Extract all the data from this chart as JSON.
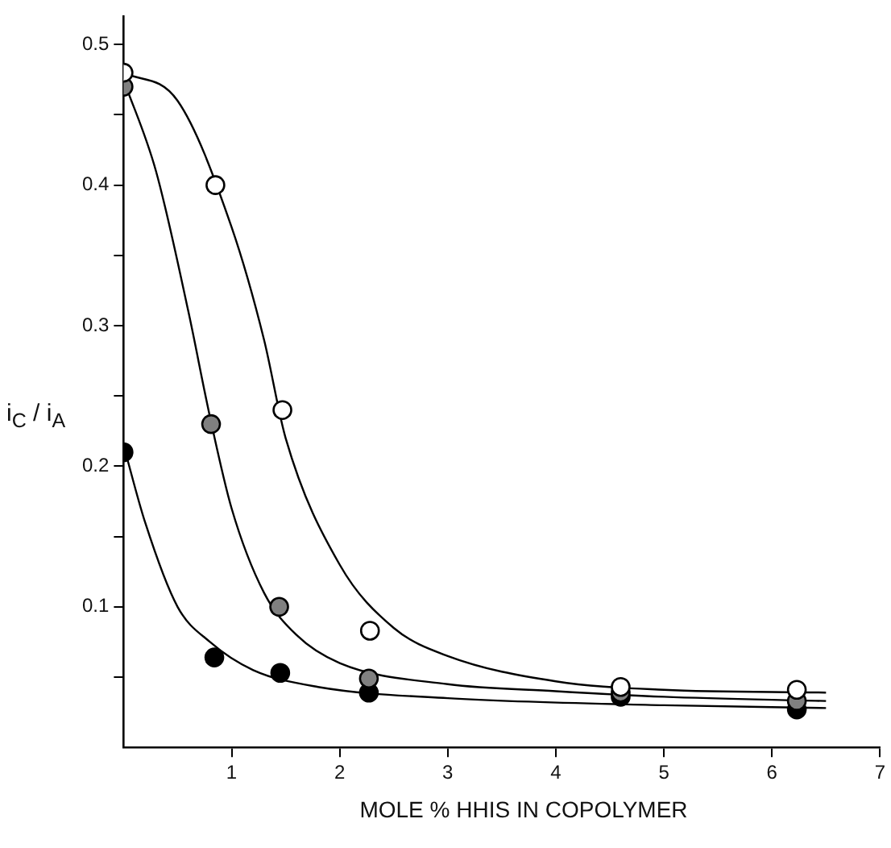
{
  "chart_data": {
    "type": "scatter",
    "xlabel": "MOLE % HHIS IN COPOLYMER",
    "ylabel": "i$_{C}$ / i$_{A}$",
    "xlim": [
      0,
      7
    ],
    "xticks": [
      1,
      2,
      3,
      4,
      5,
      6,
      7
    ],
    "ylim": [
      0,
      0.52
    ],
    "yticks": [
      {
        "value": 0.05,
        "label": null
      },
      0.1,
      {
        "value": 0.15,
        "label": null
      },
      0.2,
      {
        "value": 0.25,
        "label": null
      },
      0.3,
      {
        "value": 0.35,
        "label": null
      },
      0.4,
      {
        "value": 0.45,
        "label": null
      },
      0.5
    ],
    "grid": false,
    "legend": false,
    "series": [
      {
        "color": "#ffffff",
        "marker": "circle",
        "x": [
          0,
          0.85,
          1.47,
          2.28,
          4.6,
          6.23
        ],
        "values": [
          0.48,
          0.4,
          0.24,
          0.083,
          0.043,
          0.041
        ]
      },
      {
        "color": "#808080",
        "marker": "circle",
        "x": [
          0,
          0.81,
          1.44,
          2.27,
          4.6,
          6.23
        ],
        "values": [
          0.47,
          0.23,
          0.1,
          0.049,
          0.039,
          0.033
        ]
      },
      {
        "color": "#000000",
        "marker": "circle",
        "x": [
          0,
          0.84,
          1.45,
          2.27,
          4.6,
          6.23
        ],
        "values": [
          0.21,
          0.064,
          0.053,
          0.039,
          0.036,
          0.027
        ]
      },
      {
        "type": "line",
        "color": "#000000",
        "marker": "none",
        "x": [
          0,
          0.5,
          1,
          1.3,
          1.5,
          2,
          2.5,
          3,
          4,
          5,
          6.5
        ],
        "values": [
          0.48,
          0.46,
          0.37,
          0.29,
          0.22,
          0.13,
          0.085,
          0.065,
          0.047,
          0.041,
          0.039
        ]
      },
      {
        "type": "line",
        "color": "#000000",
        "marker": "none",
        "x": [
          0,
          0.3,
          0.6,
          0.8,
          1,
          1.3,
          1.6,
          2,
          3,
          4,
          5,
          6.5
        ],
        "values": [
          0.475,
          0.41,
          0.31,
          0.235,
          0.17,
          0.11,
          0.08,
          0.06,
          0.045,
          0.04,
          0.036,
          0.033
        ]
      },
      {
        "type": "line",
        "color": "#000000",
        "marker": "none",
        "x": [
          0,
          0.2,
          0.5,
          0.8,
          1.2,
          1.8,
          3,
          5,
          6.5
        ],
        "values": [
          0.215,
          0.16,
          0.1,
          0.075,
          0.055,
          0.043,
          0.035,
          0.03,
          0.028
        ]
      }
    ]
  }
}
